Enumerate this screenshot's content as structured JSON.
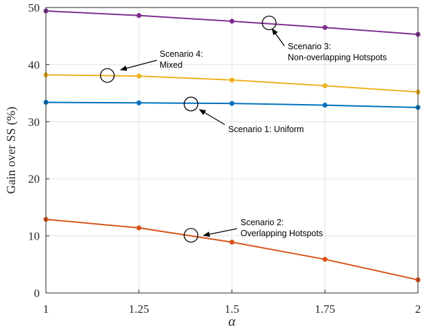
{
  "chart_data": {
    "type": "line",
    "x": [
      1,
      1.25,
      1.5,
      1.75,
      2
    ],
    "xlabel": "α",
    "ylabel": "Gain over SS (%)",
    "xlim": [
      1,
      2
    ],
    "ylim": [
      0,
      50
    ],
    "xticks": [
      1,
      1.25,
      1.5,
      1.75,
      2
    ],
    "xtick_labels": [
      "1",
      "1.25",
      "1.5",
      "1.75",
      "2"
    ],
    "yticks": [
      0,
      10,
      20,
      30,
      40,
      50
    ],
    "ytick_labels": [
      "0",
      "10",
      "20",
      "30",
      "40",
      "50"
    ],
    "grid": true,
    "series": [
      {
        "key": "scenario-1",
        "color": "#0072BD",
        "values": [
          33.4,
          33.3,
          33.2,
          32.9,
          32.5
        ]
      },
      {
        "key": "scenario-2",
        "color": "#D95319",
        "values": [
          12.9,
          11.4,
          8.9,
          5.9,
          2.3
        ]
      },
      {
        "key": "scenario-3",
        "color": "#7E2F8E",
        "values": [
          49.4,
          48.6,
          47.6,
          46.5,
          45.3
        ]
      },
      {
        "key": "scenario-4",
        "color": "#EDB120",
        "values": [
          38.2,
          38.0,
          37.3,
          36.3,
          35.2
        ]
      }
    ],
    "annotations": [
      {
        "key": "scenario-1",
        "lines": [
          "Scenario 1: Uniform"
        ],
        "circle_at": [
          1.39,
          33.1
        ]
      },
      {
        "key": "scenario-2",
        "lines": [
          "Scenario 2:",
          "Overlapping Hotspots"
        ],
        "circle_at": [
          1.39,
          10.1
        ]
      },
      {
        "key": "scenario-3",
        "lines": [
          "Scenario 3:",
          "Non-overlapping Hotspots"
        ],
        "circle_at": [
          1.6,
          47.3
        ]
      },
      {
        "key": "scenario-4",
        "lines": [
          "Scenario 4:",
          "Mixed"
        ],
        "circle_at": [
          1.165,
          38.1
        ]
      }
    ]
  }
}
